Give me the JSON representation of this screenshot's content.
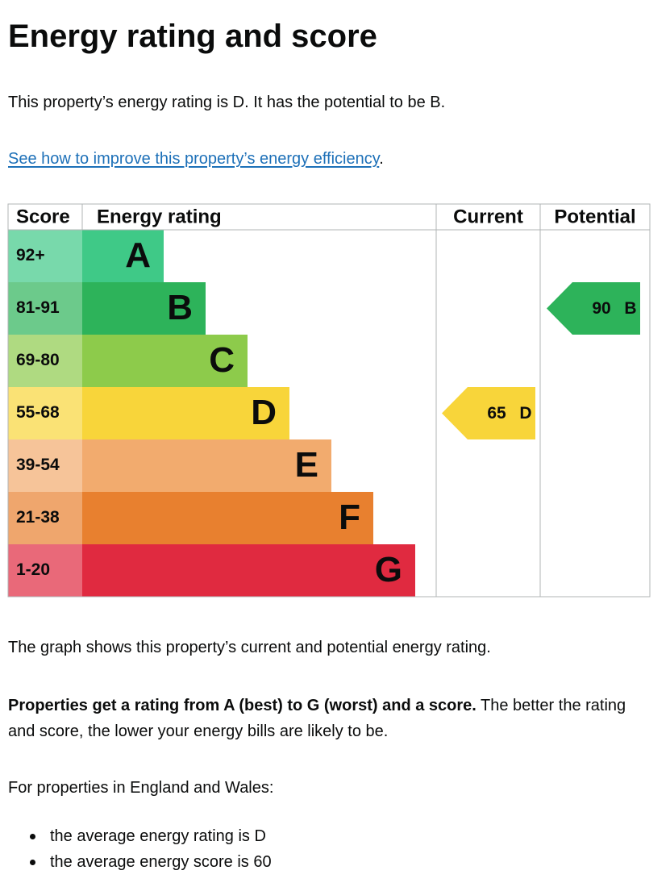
{
  "heading": "Energy rating and score",
  "intro": "This property’s energy rating is D. It has the potential to be B.",
  "link": {
    "text": "See how to improve this property’s energy efficiency",
    "after": "."
  },
  "graph": {
    "headers": [
      "Score",
      "Energy rating",
      "Current",
      "Potential"
    ],
    "bands": [
      {
        "score": "92+",
        "letter": "A",
        "color": "#3fc987"
      },
      {
        "score": "81-91",
        "letter": "B",
        "color": "#2db35a"
      },
      {
        "score": "69-80",
        "letter": "C",
        "color": "#8dcb4b"
      },
      {
        "score": "55-68",
        "letter": "D",
        "color": "#f8d53a"
      },
      {
        "score": "39-54",
        "letter": "E",
        "color": "#f2ab6e"
      },
      {
        "score": "21-38",
        "letter": "F",
        "color": "#e8802f"
      },
      {
        "score": "1-20",
        "letter": "G",
        "color": "#e02a40"
      }
    ],
    "current": {
      "score": 65,
      "letter": "D"
    },
    "potential": {
      "score": 90,
      "letter": "B"
    }
  },
  "caption": "The graph shows this property’s current and potential energy rating.",
  "explain": {
    "bold": "Properties get a rating from A (best) to G (worst) and a score.",
    "rest": " The better the rating and score, the lower your energy bills are likely to be."
  },
  "region": "For properties in England and Wales:",
  "list": [
    "the average energy rating is D",
    "the average energy score is 60"
  ]
}
